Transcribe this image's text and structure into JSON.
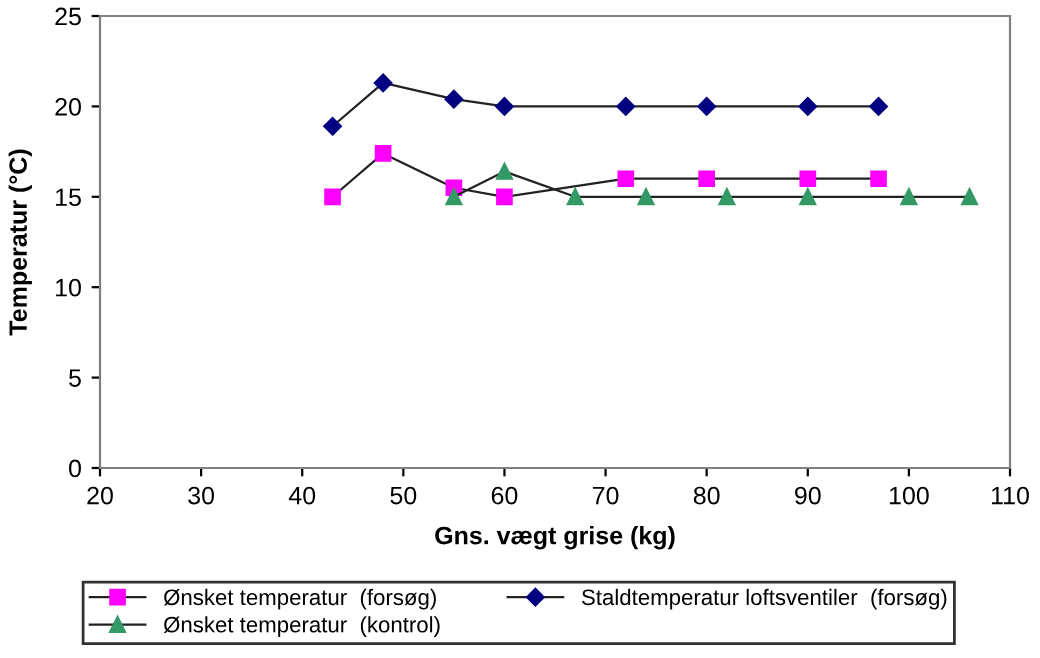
{
  "chart_data": {
    "type": "line",
    "xlabel": "Gns. vægt grise (kg)",
    "ylabel": "Temperatur (°C)",
    "xlim": [
      20,
      110
    ],
    "xticks": [
      20,
      30,
      40,
      50,
      60,
      70,
      80,
      90,
      100,
      110
    ],
    "ylim": [
      0,
      25
    ],
    "yticks": [
      0,
      5,
      10,
      15,
      20,
      25
    ],
    "grid": false,
    "legend": "bottom",
    "series": [
      {
        "name": "Ønsket temperatur  (forsøg)",
        "color": "#ff00ff",
        "marker": "square",
        "x": [
          43,
          48,
          55,
          60,
          72,
          80,
          90,
          97
        ],
        "values": [
          15,
          17.4,
          15.5,
          15,
          16,
          16,
          16,
          16
        ]
      },
      {
        "name": "Staldtemperatur loftsventiler  (forsøg)",
        "color": "#000080",
        "marker": "diamond",
        "x": [
          43,
          48,
          55,
          60,
          72,
          80,
          90,
          97
        ],
        "values": [
          18.9,
          21.3,
          20.4,
          20,
          20,
          20,
          20,
          20
        ]
      },
      {
        "name": "Ønsket temperatur  (kontrol)",
        "color": "#339966",
        "marker": "triangle",
        "x": [
          55,
          60,
          67,
          74,
          82,
          90,
          100,
          106
        ],
        "values": [
          15,
          16.4,
          15,
          15,
          15,
          15,
          15,
          15
        ]
      }
    ]
  }
}
